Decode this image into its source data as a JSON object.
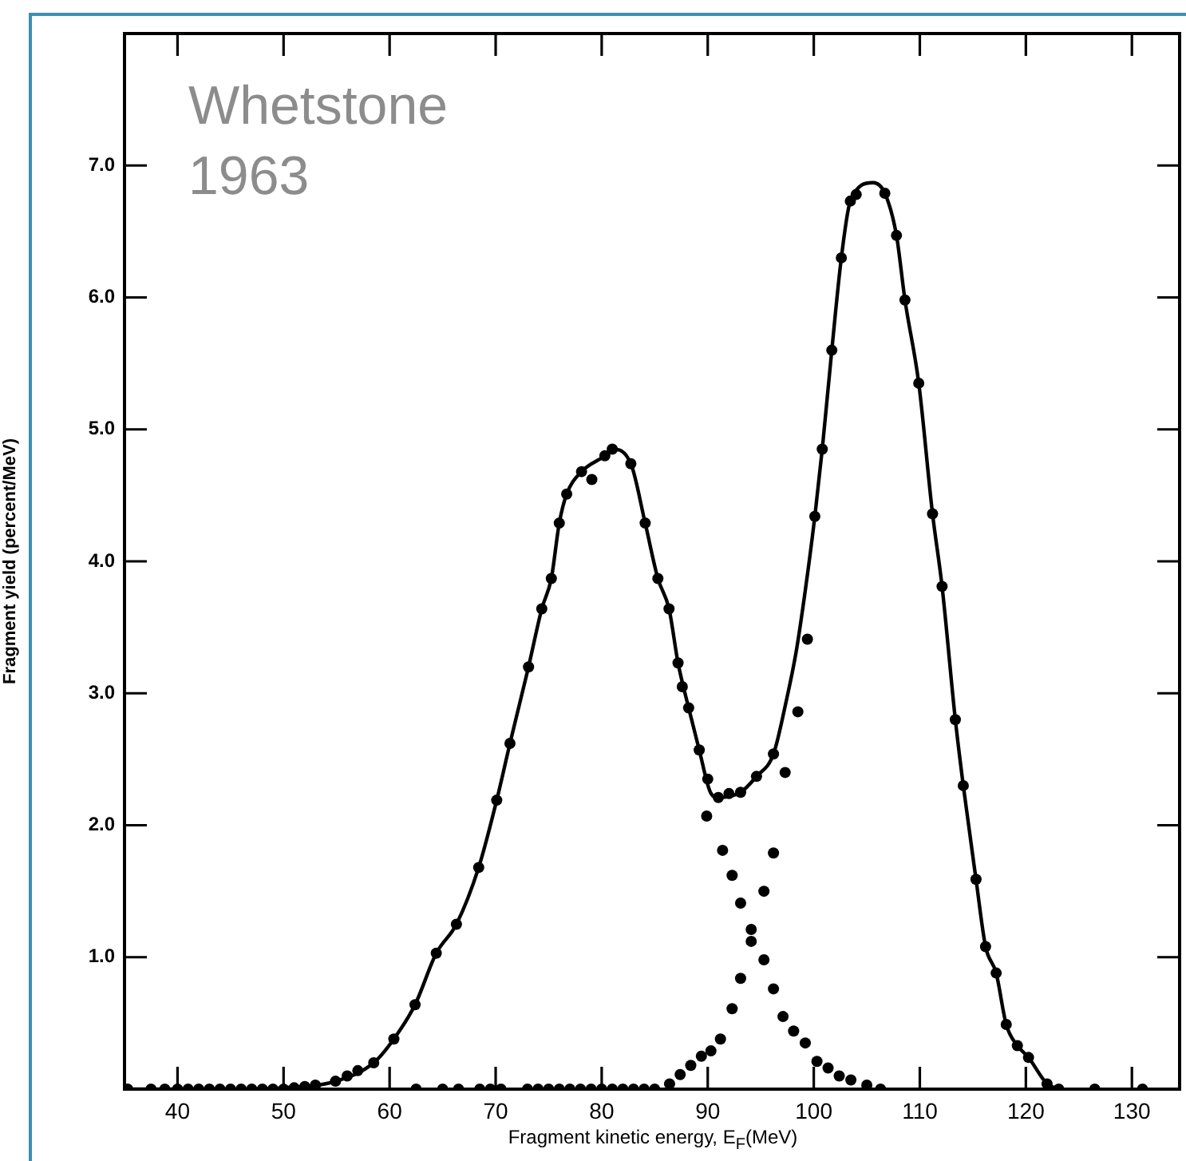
{
  "chart_data": {
    "type": "line",
    "xlabel": "Fragment kinetic energy, E$_{F}$(MeV)",
    "ylabel": "Fragment yield (percent/MeV)",
    "annotations": [
      "Whetstone\n1963"
    ],
    "xlim": [
      35,
      134.5
    ],
    "ylim": [
      0,
      8
    ],
    "xticks": [
      40,
      50,
      60,
      70,
      80,
      90,
      100,
      110,
      120,
      130
    ],
    "yticks": [
      {
        "value": 1,
        "label": "1.0"
      },
      {
        "value": 2,
        "label": "2.0"
      },
      {
        "value": 3,
        "label": "3.0"
      },
      {
        "value": 4,
        "label": "4.0"
      },
      {
        "value": 5,
        "label": "5.0"
      },
      {
        "value": 6,
        "label": "6.0"
      },
      {
        "value": 7,
        "label": "7.0"
      }
    ],
    "grid": false,
    "legend": false,
    "series": [
      {
        "type": "line",
        "color": "#000000",
        "marker": "none",
        "line_style": "solid",
        "x": [
          35,
          45,
          50,
          54.9,
          58.5,
          60.4,
          62.4,
          64.4,
          66.3,
          68.4,
          70.1,
          71.35,
          73.1,
          74.35,
          75.25,
          76,
          76.7,
          78.1,
          80.3,
          81,
          82.75,
          84.1,
          85.3,
          86.35,
          87.2,
          88.2,
          89.2,
          90.25,
          91,
          93.1,
          94.6,
          96.2,
          97.4,
          98.35,
          99.2,
          100.1,
          100.8,
          101.7,
          102.6,
          103.45,
          105.6,
          106.7,
          107.8,
          108.6,
          109.9,
          111.2,
          112.1,
          113.35,
          114.1,
          115.3,
          116.2,
          117.2,
          118.15,
          119.2,
          120.25,
          122,
          123.1
        ],
        "values": [
          0,
          0,
          0.01,
          0.06,
          0.2,
          0.38,
          0.64,
          1.03,
          1.25,
          1.68,
          2.19,
          2.62,
          3.2,
          3.64,
          3.87,
          4.29,
          4.51,
          4.68,
          4.8,
          4.85,
          4.74,
          4.29,
          3.87,
          3.64,
          3.23,
          2.89,
          2.57,
          2.25,
          2.21,
          2.25,
          2.37,
          2.54,
          2.94,
          3.32,
          3.78,
          4.34,
          4.85,
          5.6,
          6.3,
          6.73,
          6.87,
          6.79,
          6.47,
          5.98,
          5.35,
          4.36,
          3.81,
          2.8,
          2.3,
          1.59,
          1.08,
          0.88,
          0.49,
          0.33,
          0.24,
          0.04,
          0
        ]
      },
      {
        "type": "scatter",
        "color": "#000000",
        "marker": "circle",
        "x": [
          35.3,
          37.5,
          38.8,
          40,
          41,
          42,
          43,
          44,
          45,
          46,
          47,
          48,
          49,
          50,
          51,
          52,
          53,
          54.9,
          56,
          57,
          58.5,
          60.4,
          62.4,
          64.4,
          66.3,
          68.4,
          70.1,
          71.35,
          73.1,
          74.35,
          75.25,
          76,
          76.7,
          78.1,
          79.07,
          80.3,
          81,
          82.75,
          84.1,
          85.3,
          86.35,
          87.2,
          87.6,
          88.2,
          89.2,
          90,
          91,
          92,
          93.1,
          94.6,
          96.2,
          97.3,
          98.5,
          99.4,
          100.1,
          100.8,
          101.7,
          102.6,
          103.45,
          104,
          106.7,
          107.8,
          108.6,
          109.9,
          111.2,
          112.1,
          113.35,
          114.1,
          115.3,
          116.2,
          117.2,
          118.15,
          119.2,
          120.25,
          122,
          123.1,
          126.5,
          131,
          62.5,
          65,
          66.5,
          68.5,
          69.5,
          70.5,
          73,
          74,
          75,
          76,
          77,
          78,
          79,
          80,
          81,
          82,
          83,
          84,
          85,
          89.9,
          91.4,
          92.3,
          93.1,
          94.1,
          95.3,
          96.2,
          97.1,
          98.1,
          99.2,
          100.3,
          101.35,
          102.4,
          103.5,
          105,
          106.3,
          86.4,
          87.4,
          88.4,
          89.4,
          90.3,
          91.2,
          92.3,
          93.1,
          94.1,
          95.3,
          96.2
        ],
        "values": [
          0,
          0,
          0,
          0,
          0,
          0,
          0,
          0,
          0,
          0,
          0,
          0,
          0,
          0,
          0.01,
          0.02,
          0.03,
          0.06,
          0.1,
          0.14,
          0.2,
          0.38,
          0.64,
          1.03,
          1.25,
          1.68,
          2.19,
          2.62,
          3.2,
          3.64,
          3.87,
          4.29,
          4.51,
          4.68,
          4.62,
          4.8,
          4.85,
          4.74,
          4.29,
          3.87,
          3.64,
          3.23,
          3.05,
          2.89,
          2.57,
          2.35,
          2.21,
          2.24,
          2.25,
          2.37,
          2.54,
          2.4,
          2.86,
          3.41,
          4.34,
          4.85,
          5.6,
          6.3,
          6.73,
          6.78,
          6.79,
          6.47,
          5.98,
          5.35,
          4.36,
          3.81,
          2.8,
          2.3,
          1.59,
          1.08,
          0.88,
          0.49,
          0.33,
          0.24,
          0.04,
          0,
          0,
          0,
          0,
          0,
          0,
          0,
          0,
          0,
          0,
          0,
          0,
          0,
          0,
          0,
          0,
          0,
          0,
          0,
          0,
          0,
          0,
          2.07,
          1.81,
          1.62,
          1.41,
          1.21,
          0.98,
          0.76,
          0.55,
          0.44,
          0.35,
          0.21,
          0.16,
          0.1,
          0.07,
          0.03,
          0,
          0.04,
          0.11,
          0.18,
          0.25,
          0.29,
          0.38,
          0.61,
          0.84,
          1.12,
          1.5,
          1.79
        ]
      }
    ]
  }
}
